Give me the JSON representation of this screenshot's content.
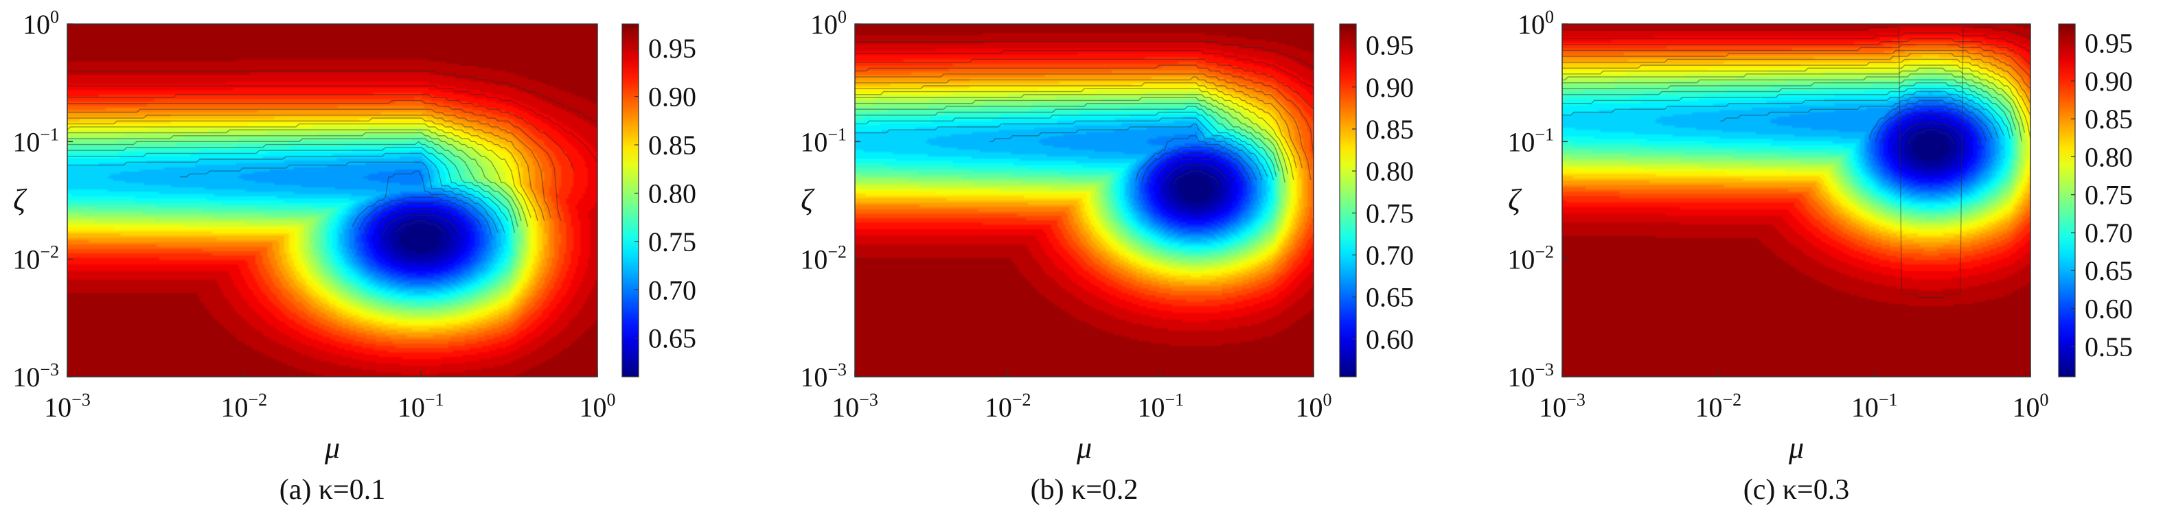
{
  "chart_data": [
    {
      "type": "heatmap",
      "subtype": "filled-contour",
      "caption": "(a) κ=0.1",
      "xlabel": "μ",
      "ylabel": "ζ",
      "x_scale": "log",
      "y_scale": "log",
      "xlim": [
        0.001,
        1
      ],
      "ylim": [
        0.001,
        1
      ],
      "x_ticks": [
        "10^-3",
        "10^-2",
        "10^-1",
        "10^0"
      ],
      "y_ticks": [
        "10^-3",
        "10^-2",
        "10^-1",
        "10^0"
      ],
      "colormap": "jet",
      "colorbar_range": [
        0.61,
        0.975
      ],
      "colorbar_ticks": [
        "0.65",
        "0.70",
        "0.75",
        "0.80",
        "0.85",
        "0.90",
        "0.95"
      ],
      "minimum": {
        "mu": 0.1,
        "zeta": 0.015,
        "value": 0.62
      },
      "valley_tail_zeta": 0.05
    },
    {
      "type": "heatmap",
      "subtype": "filled-contour",
      "caption": "(b) κ=0.2",
      "xlabel": "μ",
      "ylabel": "ζ",
      "x_scale": "log",
      "y_scale": "log",
      "xlim": [
        0.001,
        1
      ],
      "ylim": [
        0.001,
        1
      ],
      "x_ticks": [
        "10^-3",
        "10^-2",
        "10^-1",
        "10^0"
      ],
      "y_ticks": [
        "10^-3",
        "10^-2",
        "10^-1",
        "10^0"
      ],
      "colormap": "jet",
      "colorbar_range": [
        0.555,
        0.975
      ],
      "colorbar_ticks": [
        "0.60",
        "0.65",
        "0.70",
        "0.75",
        "0.80",
        "0.85",
        "0.90",
        "0.95"
      ],
      "minimum": {
        "mu": 0.17,
        "zeta": 0.04,
        "value": 0.57
      },
      "valley_tail_zeta": 0.1
    },
    {
      "type": "heatmap",
      "subtype": "filled-contour",
      "caption": "(c) κ=0.3",
      "xlabel": "μ",
      "ylabel": "ζ",
      "x_scale": "log",
      "y_scale": "log",
      "xlim": [
        0.001,
        1
      ],
      "ylim": [
        0.001,
        1
      ],
      "x_ticks": [
        "10^-3",
        "10^-2",
        "10^-1",
        "10^0"
      ],
      "y_ticks": [
        "10^-3",
        "10^-2",
        "10^-1",
        "10^0"
      ],
      "colormap": "jet",
      "colorbar_range": [
        0.51,
        0.975
      ],
      "colorbar_ticks": [
        "0.55",
        "0.60",
        "0.65",
        "0.70",
        "0.75",
        "0.80",
        "0.85",
        "0.90",
        "0.95"
      ],
      "minimum": {
        "mu": 0.23,
        "zeta": 0.09,
        "value": 0.52
      },
      "valley_tail_zeta": 0.15
    }
  ]
}
